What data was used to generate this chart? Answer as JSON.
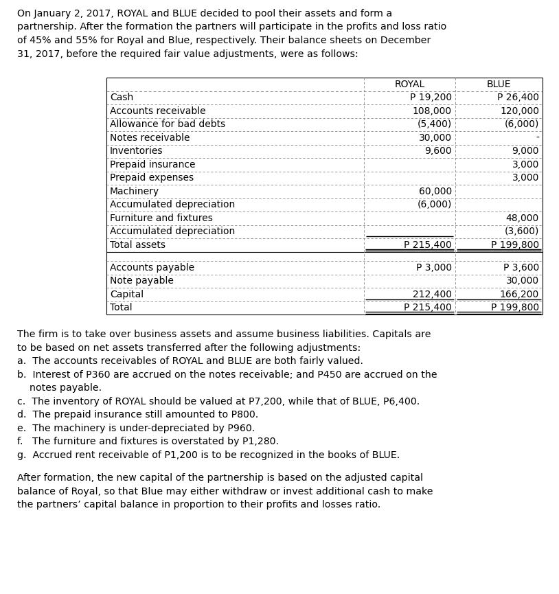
{
  "intro_lines": [
    "On January 2, 2017, ROYAL and BLUE decided to pool their assets and form a",
    "partnership. After the formation the partners will participate in the profits and loss ratio",
    "of 45% and 55% for Royal and Blue, respectively. Their balance sheets on December",
    "31, 2017, before the required fair value adjustments, were as follows:"
  ],
  "table_rows_section1": [
    [
      "Cash",
      "P 19,200",
      "P 26,400"
    ],
    [
      "Accounts receivable",
      "108,000",
      "120,000"
    ],
    [
      "Allowance for bad debts",
      "(5,400)",
      "(6,000)"
    ],
    [
      "Notes receivable",
      "30,000",
      "-"
    ],
    [
      "Inventories",
      "9,600",
      "9,000"
    ],
    [
      "Prepaid insurance",
      "",
      "3,000"
    ],
    [
      "Prepaid expenses",
      "",
      "3,000"
    ],
    [
      "Machinery",
      "60,000",
      ""
    ],
    [
      "Accumulated depreciation",
      "(6,000)",
      ""
    ],
    [
      "Furniture and fixtures",
      "",
      "48,000"
    ],
    [
      "Accumulated depreciation",
      "",
      "(3,600)"
    ],
    [
      "Total assets",
      "P 215,400",
      "P 199,800"
    ]
  ],
  "table_rows_section2": [
    [
      "Accounts payable",
      "P 3,000",
      "P 3,600"
    ],
    [
      "Note payable",
      "",
      "30,000"
    ],
    [
      "Capital",
      "212,400",
      "166,200"
    ],
    [
      "Total",
      "P 215,400",
      "P 199,800"
    ]
  ],
  "footer_lines": [
    "The firm is to take over business assets and assume business liabilities. Capitals are",
    "to be based on net assets transferred after the following adjustments:",
    "a.  The accounts receivables of ROYAL and BLUE are both fairly valued.",
    "b.  Interest of P360 are accrued on the notes receivable; and P450 are accrued on the",
    "    notes payable.",
    "c.  The inventory of ROYAL should be valued at P7,200, while that of BLUE, P6,400.",
    "d.  The prepaid insurance still amounted to P800.",
    "e.  The machinery is under-depreciated by P960.",
    "f.   The furniture and fixtures is overstated by P1,280.",
    "g.  Accrued rent receivable of P1,200 is to be recognized in the books of BLUE."
  ],
  "closing_lines": [
    "After formation, the new capital of the partnership is based on the adjusted capital",
    "balance of Royal, so that Blue may either withdraw or invest additional cash to make",
    "the partners’ capital balance in proportion to their profits and losses ratio."
  ],
  "col_header": [
    "ROYAL",
    "BLUE"
  ],
  "underline_rows_s1": [
    10,
    11
  ],
  "underline_rows_s2": [
    2,
    3
  ],
  "bg_color": "#ffffff",
  "text_color": "#000000"
}
